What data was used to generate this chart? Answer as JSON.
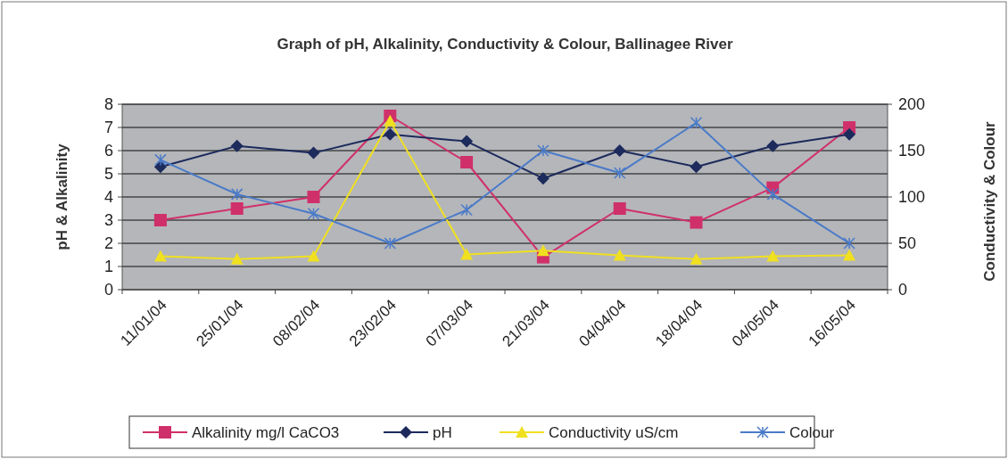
{
  "chart_data": {
    "type": "line",
    "title": "Graph of pH, Alkalinity, Conductivity & Colour, Ballinagee River",
    "ylabel": "pH & Alkalinity",
    "y2label": "Conductivity & Colour",
    "categories": [
      "11/01/04",
      "25/01/04",
      "08/02/04",
      "23/02/04",
      "07/03/04",
      "21/03/04",
      "04/04/04",
      "18/04/04",
      "04/05/04",
      "16/05/04"
    ],
    "series": [
      {
        "name": "Alkalinity mg/l CaCO3",
        "color": "#d0306a",
        "marker": "square",
        "values": [
          3.0,
          3.5,
          4.0,
          7.5,
          5.5,
          1.4,
          3.5,
          2.9,
          4.4,
          7.0
        ]
      },
      {
        "name": "pH",
        "color": "#1c2a5c",
        "marker": "diamond",
        "values": [
          5.3,
          6.2,
          5.9,
          6.7,
          6.4,
          4.8,
          6.0,
          5.3,
          6.2,
          6.7
        ]
      },
      {
        "name": "Conductivity uS/cm",
        "color": "#f0e020",
        "marker": "triangle",
        "axis": "y2",
        "values": [
          36,
          33,
          36,
          182,
          38,
          42,
          37,
          33,
          36,
          37
        ]
      },
      {
        "name": "Colour",
        "color": "#4a7ac8",
        "marker": "cross",
        "axis": "y2",
        "values": [
          140,
          103,
          82,
          50,
          86,
          150,
          126,
          180,
          103,
          50
        ]
      }
    ],
    "ylim": [
      0,
      8
    ],
    "yticks": [
      0,
      1,
      2,
      3,
      4,
      5,
      6,
      7,
      8
    ],
    "y2lim": [
      0,
      200
    ],
    "y2ticks": [
      0,
      50,
      100,
      150,
      200
    ],
    "grid": "y",
    "legend": "bottom"
  }
}
